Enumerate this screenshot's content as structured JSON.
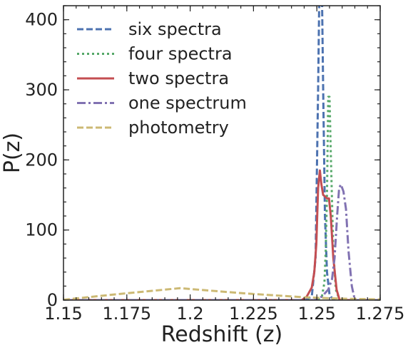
{
  "chart_data": {
    "type": "line",
    "xlabel": "Redshift (z)",
    "ylabel": "P(z)",
    "xlim": [
      1.15,
      1.275
    ],
    "ylim": [
      0,
      420
    ],
    "x_ticks": [
      1.15,
      1.175,
      1.2,
      1.225,
      1.25,
      1.275
    ],
    "x_tick_labels": [
      "1.15",
      "1.175",
      "1.2",
      "1.225",
      "1.25",
      "1.275"
    ],
    "y_ticks": [
      0,
      100,
      200,
      300,
      400
    ],
    "y_tick_labels": [
      "0",
      "100",
      "200",
      "300",
      "400"
    ],
    "grid": false,
    "legend_position": "upper-left",
    "series": [
      {
        "name": "six spectra",
        "color": "#4c72b0",
        "dash": "dashed",
        "x": [
          1.15,
          1.245,
          1.248,
          1.2495,
          1.2505,
          1.2512,
          1.2518,
          1.2525,
          1.2532,
          1.254,
          1.255,
          1.2565,
          1.275
        ],
        "y": [
          0,
          0,
          5,
          60,
          300,
          500,
          500,
          300,
          120,
          40,
          8,
          0,
          0
        ]
      },
      {
        "name": "four spectra",
        "color": "#55a868",
        "dash": "dotted",
        "x": [
          1.15,
          1.25,
          1.252,
          1.253,
          1.2535,
          1.254,
          1.2545,
          1.255,
          1.2555,
          1.256,
          1.2565,
          1.2575,
          1.259,
          1.275
        ],
        "y": [
          0,
          0,
          5,
          25,
          70,
          150,
          290,
          290,
          210,
          140,
          70,
          15,
          0,
          0
        ]
      },
      {
        "name": "two spectra",
        "color": "#c44e52",
        "dash": "solid",
        "x": [
          1.15,
          1.244,
          1.246,
          1.248,
          1.249,
          1.2498,
          1.2505,
          1.2512,
          1.2518,
          1.2525,
          1.2532,
          1.254,
          1.2548,
          1.2555,
          1.2565,
          1.2578,
          1.259,
          1.275
        ],
        "y": [
          0,
          0,
          5,
          18,
          40,
          80,
          160,
          185,
          165,
          150,
          148,
          145,
          145,
          120,
          60,
          15,
          0,
          0
        ]
      },
      {
        "name": "one spectrum",
        "color": "#8172b2",
        "dash": "dashdot",
        "x": [
          1.15,
          1.249,
          1.252,
          1.2545,
          1.256,
          1.257,
          1.258,
          1.2588,
          1.2595,
          1.2605,
          1.2615,
          1.2625,
          1.2638,
          1.265,
          1.275
        ],
        "y": [
          0,
          0,
          5,
          15,
          30,
          60,
          120,
          160,
          165,
          155,
          130,
          70,
          20,
          0,
          0
        ]
      },
      {
        "name": "photometry",
        "color": "#ccb974",
        "dash": "dashed",
        "x": [
          1.15,
          1.17,
          1.196,
          1.22,
          1.245,
          1.26,
          1.275
        ],
        "y": [
          0.5,
          8,
          17,
          10,
          4,
          2,
          1
        ]
      }
    ]
  }
}
